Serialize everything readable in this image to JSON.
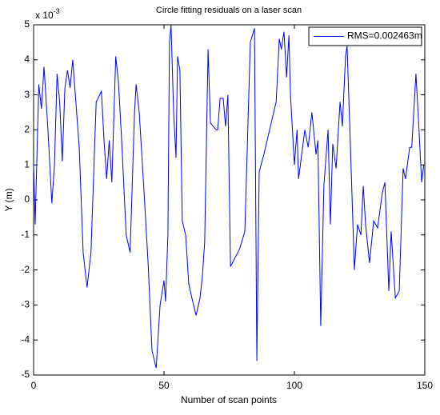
{
  "chart_data": {
    "type": "line",
    "title": "Circle fitting residuals on a laser scan",
    "xlabel": "Number of scan points",
    "ylabel": "Y (m)",
    "y_multiplier": {
      "base": "x 10",
      "exponent": "-3"
    },
    "xlim": [
      0,
      150
    ],
    "xticks": [
      0,
      50,
      100,
      150
    ],
    "ylim": [
      -5,
      5
    ],
    "yticks": [
      -5,
      -4,
      -3,
      -2,
      -1,
      0,
      1,
      2,
      3,
      4,
      5
    ],
    "legend": "upper right",
    "series": [
      {
        "name": "RMS=0.002463m",
        "color": "#0000ff",
        "x": [
          0,
          0.6,
          2,
          3,
          4,
          5.5,
          7,
          8,
          9,
          10,
          11,
          12,
          13,
          14,
          15,
          16.5,
          17.5,
          19,
          20.5,
          22,
          24,
          26,
          27,
          28,
          29,
          30,
          31.5,
          32.5,
          33.7,
          35.5,
          37,
          38.7,
          39.3,
          40.5,
          42.3,
          43.9,
          45.4,
          47,
          48.5,
          50,
          50.6,
          51.5,
          52.1,
          52.7,
          53.7,
          54.6,
          55.2,
          56.1,
          57,
          58.3,
          59.5,
          60.7,
          62.3,
          63.8,
          64.7,
          65.6,
          66.9,
          67.8,
          70,
          70.6,
          71.5,
          72.7,
          73.6,
          74.5,
          75.5,
          79,
          81,
          83.1,
          84.7,
          85.6,
          86.5,
          88.3,
          93,
          94.2,
          95,
          96,
          97,
          97.9,
          98.5,
          100,
          101,
          101.6,
          104,
          105.3,
          106.7,
          108.3,
          109,
          110.1,
          111.3,
          112.9,
          113.8,
          114.7,
          116,
          117.5,
          118.4,
          119.6,
          120.2,
          121.5,
          123,
          124.2,
          125.5,
          126.4,
          127.3,
          128.8,
          130.4,
          131.9,
          133.7,
          134.7,
          136.2,
          137.1,
          138.7,
          140.2,
          141.7,
          142.6,
          144.2,
          145,
          146.6,
          147.5,
          148.8,
          149.6
        ],
        "values": [
          1,
          -0.7,
          3.3,
          2.6,
          3.8,
          2,
          -0.1,
          1,
          3.6,
          2.8,
          1.1,
          3.2,
          3.7,
          3.2,
          4.0,
          2.5,
          1.5,
          -1.5,
          -2.5,
          -1.5,
          2.8,
          3.1,
          1.7,
          0.6,
          1.7,
          0.5,
          4.1,
          3.4,
          1.8,
          -1,
          -1.5,
          2.5,
          3.3,
          2.5,
          0.3,
          -1.8,
          -4.3,
          -4.8,
          -3,
          -2.3,
          -2.9,
          -1,
          4.5,
          5,
          2.5,
          1.2,
          4.1,
          3.7,
          -0.6,
          -1,
          -2.4,
          -2.8,
          -3.3,
          -2.8,
          -2.2,
          -1.2,
          4.3,
          2.2,
          2.0,
          2.0,
          2.9,
          2.9,
          2.1,
          3.0,
          -1.9,
          -1.4,
          -0.9,
          4.5,
          4.9,
          -4.6,
          0.8,
          1.3,
          2.8,
          4.6,
          4.3,
          4.8,
          3.5,
          4.7,
          3.0,
          1.0,
          2.0,
          0.6,
          2.0,
          1.5,
          2.5,
          1.3,
          1.7,
          -3.6,
          0.4,
          2.0,
          -0.7,
          1.6,
          0.9,
          2.8,
          2.1,
          4.1,
          4.4,
          1.5,
          -2.0,
          -0.7,
          -1.0,
          0.4,
          -0.7,
          -1.8,
          -0.6,
          -0.8,
          0.2,
          0.5,
          -2.6,
          -0.9,
          -2.8,
          -2.6,
          0.9,
          0.6,
          1.5,
          1.5,
          3.6,
          2.4,
          0.5,
          1.0
        ]
      }
    ]
  }
}
